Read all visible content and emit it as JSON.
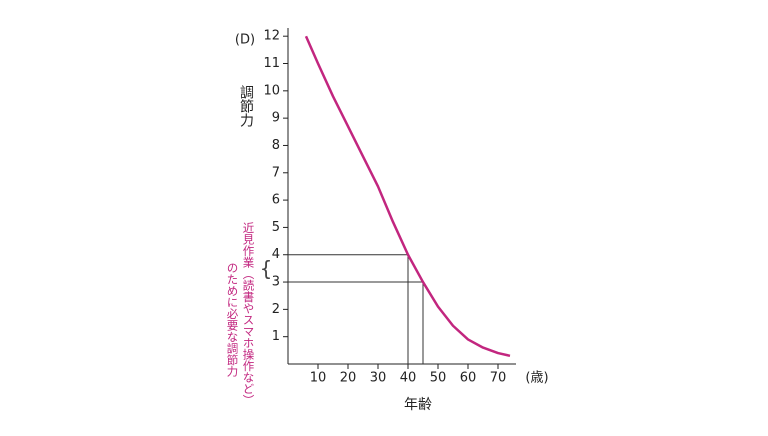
{
  "chart_data": {
    "type": "line",
    "panel_label": "(D)",
    "y_label": "調節力",
    "x_label": "年齢",
    "x_unit": "(歳)",
    "annotation": [
      "近見作業（読書やスマホ操作など）",
      "のために必要な調節力"
    ],
    "x": [
      6,
      10,
      15,
      20,
      25,
      30,
      35,
      40,
      45,
      50,
      55,
      60,
      65,
      70,
      74
    ],
    "series": [
      {
        "name": "調節力",
        "color": "#c2267f",
        "values": [
          12,
          11.0,
          9.8,
          8.7,
          7.6,
          6.5,
          5.2,
          4.0,
          3.0,
          2.1,
          1.4,
          0.9,
          0.6,
          0.4,
          0.3
        ]
      }
    ],
    "reference_points": [
      {
        "x": 40,
        "y": 4
      },
      {
        "x": 45,
        "y": 3
      }
    ],
    "xlim": [
      0,
      76
    ],
    "ylim": [
      0,
      12.3
    ],
    "xticks": [
      10,
      20,
      30,
      40,
      50,
      60,
      70
    ],
    "yticks": [
      1,
      2,
      3,
      4,
      5,
      6,
      7,
      8,
      9,
      10,
      11,
      12
    ],
    "annotation_color": "#c2267f"
  }
}
